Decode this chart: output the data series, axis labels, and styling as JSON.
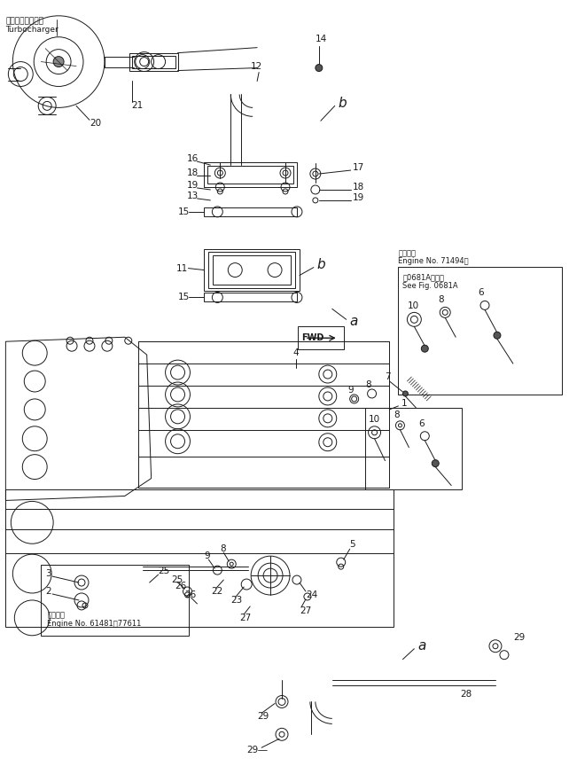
{
  "bg_color": "#ffffff",
  "fig_width": 6.42,
  "fig_height": 8.73,
  "dpi": 100,
  "lc": "#1a1a1a",
  "lw": 0.7,
  "fs": 7.5,
  "labels": {
    "tc_jp": "ターボチャージャ",
    "tc_en": "Turbocharger",
    "fwd": "FWD",
    "eng_top1": "適用号機",
    "eng_top2": "Engine No. 71494～",
    "see1": "第0681A図参照",
    "see2": "See Fig. 0681A",
    "eng_bot1": "適用号機",
    "eng_bot2": "Engine No. 61481～77611"
  }
}
